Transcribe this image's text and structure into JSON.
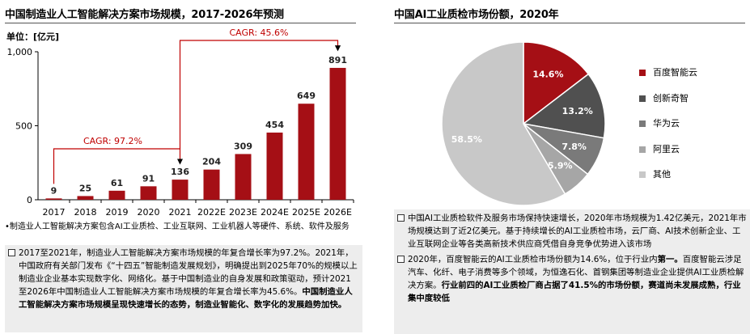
{
  "left": {
    "title": "中国制造业人工智能解决方案市场规模，2017-2026年预测",
    "unit": "单位：[亿元]",
    "note": "•制造业人工智能解决方案包含AI工业质检、工业互联网、工业机器人等硬件、系统、软件及服务",
    "box": {
      "p1": "2017至2021年，制造业人工智能解决方案市场规模的年复合增长率为97.2%。2021年，中国政府有关部门发布《“十四五”智能制造发展规划》，明确提出到2025年70%的规模以上制造业企业基本实现数字化、网络化。基于中国制造业的自身发展和政策驱动，预计2021至2026年中国制造业人工智能解决方案市场规模的年复合增长率为45.6%。",
      "p1_bold": "中国制造业人工智能解决方案市场规模呈现快速增长的态势，制造业智能化、数字化的发展趋势加快。"
    }
  },
  "right": {
    "title": "中国AI工业质检市场份额，2020年",
    "box": {
      "p1": "中国AI工业质检软件及服务市场保持快速增长，2020年市场规模为1.42亿美元，2021年市场规模达到了近2亿美元。基于持续增长的AI工业质检市场，云厂商、AI技术创新企业、工业互联网企业等各类高新技术供应商凭借自身竞争优势进入该市场",
      "p2": "2020年，百度智能云的AI工业质检市场份额为14.6%，位于行业内",
      "p2_bold1": "第一。",
      "p2_mid": "百度智能云涉足汽车、化纤、电子消费等多个领域，为恒逸石化、首钢集团等制造业企业提供AI工业质检解决方案。",
      "p2_bold2": "行业前四的AI工业质检厂商占据了41.5%的市场份额，赛道尚未发展成熟，行业集中度较低"
    }
  },
  "chart_data": [
    {
      "type": "bar",
      "categories": [
        "2017",
        "2018",
        "2019",
        "2020",
        "2021",
        "2022E",
        "2023E",
        "2024E",
        "2025E",
        "2026E"
      ],
      "values": [
        9,
        25,
        61,
        91,
        136,
        204,
        309,
        454,
        649,
        891
      ],
      "ylim": [
        0,
        1000
      ],
      "yticks": [
        "0",
        "500",
        "1,000"
      ],
      "color": "#a50f15",
      "annotations": [
        {
          "label": "CAGR: 97.2%",
          "from": "2017",
          "to": "2021"
        },
        {
          "label": "CAGR: 45.6%",
          "from": "2021",
          "to": "2026E"
        }
      ],
      "annotation_color": "#c00000"
    },
    {
      "type": "pie",
      "slices": [
        {
          "name": "百度智能云",
          "value": 14.6,
          "label": "14.6%",
          "color": "#a50f15"
        },
        {
          "name": "创新奇智",
          "value": 13.2,
          "label": "13.2%",
          "color": "#505050"
        },
        {
          "name": "华为云",
          "value": 7.8,
          "label": "7.8%",
          "color": "#7a7a7a"
        },
        {
          "name": "阿里云",
          "value": 5.9,
          "label": "5.9%",
          "color": "#a6a6a6"
        },
        {
          "name": "其他",
          "value": 58.5,
          "label": "58.5%",
          "color": "#c8c8c8"
        }
      ]
    }
  ]
}
